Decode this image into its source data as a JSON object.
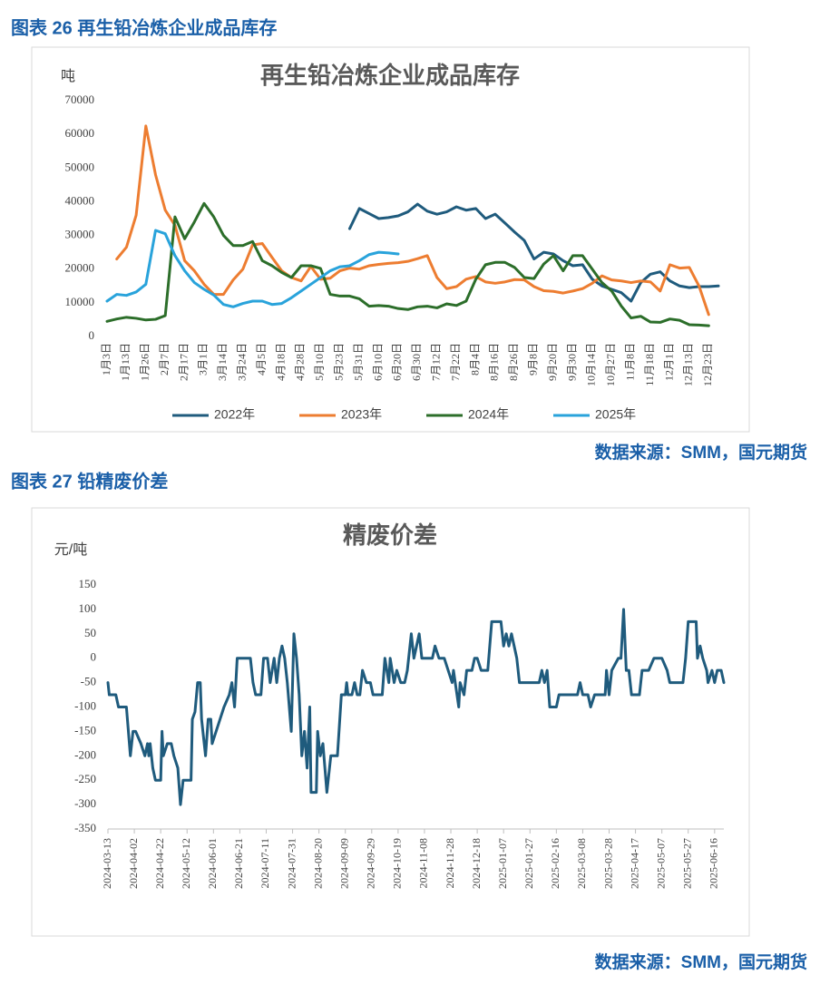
{
  "captions": [
    "图表 26 再生铅冶炼企业成品库存",
    "图表 27 铅精废价差"
  ],
  "sources": [
    "数据来源：SMM，国元期货",
    "数据来源：SMM，国元期货"
  ],
  "chart_data": [
    {
      "type": "line",
      "title": "再生铅冶炼企业成品库存",
      "y_label": "吨",
      "categories": [
        "1月3日",
        null,
        "1月13日",
        null,
        "1月26日",
        null,
        "2月7日",
        null,
        "2月17日",
        null,
        "3月1日",
        null,
        "3月14日",
        null,
        "3月24日",
        null,
        "4月5日",
        null,
        "4月18日",
        null,
        "4月28日",
        null,
        "5月10日",
        null,
        "5月23日",
        null,
        "5月31日",
        null,
        "6月10日",
        null,
        "6月20日",
        null,
        "6月30日",
        null,
        "7月12日",
        null,
        "7月22日",
        null,
        "8月4日",
        null,
        "8月16日",
        null,
        "8月26日",
        null,
        "9月8日",
        null,
        "9月20日",
        null,
        "9月30日",
        null,
        "10月14日",
        null,
        "10月27日",
        null,
        "11月8日",
        null,
        "11月18日",
        null,
        "12月1日",
        null,
        "12月13日",
        null,
        "12月23日",
        null
      ],
      "ylim": [
        0,
        70000
      ],
      "yticks": [
        0,
        10000,
        20000,
        30000,
        40000,
        50000,
        60000,
        70000
      ],
      "grid": false,
      "legend": "bottom",
      "series": [
        {
          "name": "2022年",
          "color": "#1f5b7d",
          "values": [
            null,
            null,
            null,
            null,
            null,
            null,
            null,
            null,
            null,
            null,
            null,
            null,
            null,
            null,
            null,
            null,
            null,
            null,
            null,
            null,
            null,
            null,
            null,
            null,
            null,
            32000,
            38000,
            36500,
            35000,
            35300,
            35800,
            37000,
            39300,
            37200,
            36300,
            37000,
            38500,
            37500,
            38000,
            35000,
            36300,
            33700,
            31000,
            28500,
            23000,
            25000,
            24500,
            22500,
            21000,
            21300,
            17000,
            15000,
            14000,
            13000,
            10500,
            16000,
            18500,
            19200,
            16500,
            15000,
            14500,
            14800,
            14800,
            15000
          ]
        },
        {
          "name": "2023年",
          "color": "#ed7d31",
          "values": [
            null,
            23000,
            26500,
            36000,
            62500,
            48000,
            37500,
            33000,
            22500,
            19500,
            15500,
            12500,
            12500,
            16800,
            20000,
            27200,
            27600,
            23500,
            19500,
            17500,
            16500,
            20800,
            17000,
            17300,
            19500,
            20300,
            20000,
            21000,
            21400,
            21700,
            21900,
            22300,
            23100,
            24000,
            17500,
            14200,
            14800,
            17000,
            17800,
            16200,
            15800,
            16200,
            16900,
            16800,
            14800,
            13600,
            13400,
            12900,
            13500,
            14200,
            15800,
            18000,
            16800,
            16500,
            16000,
            16500,
            16200,
            13500,
            21300,
            20300,
            20500,
            15000,
            6500,
            null
          ]
        },
        {
          "name": "2024年",
          "color": "#2c6e2a",
          "values": [
            4500,
            5200,
            5700,
            5400,
            4900,
            5100,
            6200,
            35500,
            29000,
            34000,
            39500,
            35500,
            30000,
            27000,
            27000,
            28200,
            22500,
            21000,
            19000,
            17500,
            21000,
            21000,
            20200,
            12500,
            12000,
            12000,
            11200,
            9000,
            9200,
            9000,
            8300,
            8000,
            8800,
            9000,
            8500,
            9700,
            9200,
            10500,
            17000,
            21300,
            22000,
            22000,
            20500,
            17500,
            17200,
            21500,
            24000,
            19500,
            24000,
            24000,
            20000,
            16000,
            13500,
            9000,
            5500,
            6000,
            4300,
            4200,
            5200,
            4800,
            3500,
            3400,
            3200,
            null
          ]
        },
        {
          "name": "2025年",
          "color": "#29a3db",
          "values": [
            10500,
            12500,
            12200,
            13200,
            15500,
            31500,
            30500,
            24000,
            19500,
            16000,
            14000,
            12300,
            9500,
            8800,
            9800,
            10500,
            10500,
            9500,
            9800,
            11500,
            13500,
            15500,
            17500,
            19500,
            20700,
            21000,
            22500,
            24300,
            25000,
            24800,
            24500,
            null,
            null,
            null,
            null,
            null,
            null,
            null,
            null,
            null,
            null,
            null,
            null,
            null,
            null,
            null,
            null,
            null,
            null,
            null,
            null,
            null,
            null,
            null,
            null,
            null,
            null,
            null,
            null,
            null,
            null,
            null,
            null,
            null
          ]
        }
      ]
    },
    {
      "type": "line",
      "title": "精废价差",
      "y_label": "元/吨",
      "color": "#1f5b7d",
      "xlim": [
        "2024-03-13",
        "2025-06-23"
      ],
      "xticks": [
        "2024-03-13",
        "2024-04-02",
        "2024-04-22",
        "2024-05-12",
        "2024-06-01",
        "2024-06-21",
        "2024-07-11",
        "2024-07-31",
        "2024-08-20",
        "2024-09-09",
        "2024-09-29",
        "2024-10-19",
        "2024-11-08",
        "2024-11-28",
        "2024-12-18",
        "2025-01-07",
        "2025-01-27",
        "2025-02-16",
        "2025-03-08",
        "2025-03-28",
        "2025-04-17",
        "2025-05-07",
        "2025-05-27",
        "2025-06-16"
      ],
      "ylim": [
        -350,
        150
      ],
      "yticks": [
        -350,
        -300,
        -250,
        -200,
        -150,
        -100,
        -50,
        0,
        50,
        100,
        150
      ],
      "grid": false,
      "x": [
        "2024-03-13",
        "2024-03-14",
        "2024-03-19",
        "2024-03-21",
        "2024-03-27",
        "2024-03-30",
        "2024-04-01",
        "2024-04-03",
        "2024-04-07",
        "2024-04-10",
        "2024-04-12",
        "2024-04-13",
        "2024-04-14",
        "2024-04-16",
        "2024-04-18",
        "2024-04-22",
        "2024-04-23",
        "2024-04-24",
        "2024-04-27",
        "2024-04-30",
        "2024-05-02",
        "2024-05-05",
        "2024-05-07",
        "2024-05-09",
        "2024-05-15",
        "2024-05-16",
        "2024-05-18",
        "2024-05-20",
        "2024-05-22",
        "2024-05-23",
        "2024-05-26",
        "2024-05-28",
        "2024-05-30",
        "2024-05-31",
        "2024-06-03",
        "2024-06-06",
        "2024-06-09",
        "2024-06-13",
        "2024-06-15",
        "2024-06-17",
        "2024-06-19",
        "2024-06-29",
        "2024-07-01",
        "2024-07-03",
        "2024-07-07",
        "2024-07-09",
        "2024-07-12",
        "2024-07-14",
        "2024-07-17",
        "2024-07-19",
        "2024-07-21",
        "2024-07-23",
        "2024-07-25",
        "2024-07-27",
        "2024-07-30",
        "2024-08-01",
        "2024-08-03",
        "2024-08-05",
        "2024-08-07",
        "2024-08-09",
        "2024-08-11",
        "2024-08-13",
        "2024-08-14",
        "2024-08-18",
        "2024-08-19",
        "2024-08-21",
        "2024-08-23",
        "2024-08-26",
        "2024-08-29",
        "2024-09-03",
        "2024-09-06",
        "2024-09-09",
        "2024-09-10",
        "2024-09-11",
        "2024-09-14",
        "2024-09-16",
        "2024-09-18",
        "2024-09-20",
        "2024-09-22",
        "2024-09-25",
        "2024-09-28",
        "2024-09-30",
        "2024-10-04",
        "2024-10-07",
        "2024-10-09",
        "2024-10-12",
        "2024-10-13",
        "2024-10-16",
        "2024-10-18",
        "2024-10-21",
        "2024-10-24",
        "2024-10-26",
        "2024-10-29",
        "2024-10-31",
        "2024-11-02",
        "2024-11-04",
        "2024-11-06",
        "2024-11-14",
        "2024-11-16",
        "2024-11-19",
        "2024-11-23",
        "2024-11-26",
        "2024-11-29",
        "2024-11-30",
        "2024-12-04",
        "2024-12-05",
        "2024-12-08",
        "2024-12-10",
        "2024-12-14",
        "2024-12-16",
        "2024-12-18",
        "2024-12-21",
        "2024-12-24",
        "2024-12-26",
        "2024-12-29",
        "2025-01-05",
        "2025-01-07",
        "2025-01-09",
        "2025-01-11",
        "2025-01-13",
        "2025-01-15",
        "2025-01-17",
        "2025-01-19",
        "2025-01-23",
        "2025-02-03",
        "2025-02-05",
        "2025-02-07",
        "2025-02-09",
        "2025-02-11",
        "2025-02-16",
        "2025-02-18",
        "2025-02-22",
        "2025-03-04",
        "2025-03-06",
        "2025-03-08",
        "2025-03-12",
        "2025-03-14",
        "2025-03-17",
        "2025-03-25",
        "2025-03-26",
        "2025-03-28",
        "2025-03-30",
        "2025-04-04",
        "2025-04-06",
        "2025-04-08",
        "2025-04-10",
        "2025-04-12",
        "2025-04-14",
        "2025-04-20",
        "2025-04-22",
        "2025-04-27",
        "2025-05-01",
        "2025-05-07",
        "2025-05-11",
        "2025-05-13",
        "2025-05-23",
        "2025-05-25",
        "2025-05-27",
        "2025-06-02",
        "2025-06-03",
        "2025-06-05",
        "2025-06-07",
        "2025-06-10",
        "2025-06-11",
        "2025-06-14",
        "2025-06-16",
        "2025-06-18",
        "2025-06-21",
        "2025-06-23"
      ],
      "values": [
        -50,
        -75,
        -75,
        -100,
        -100,
        -200,
        -150,
        -150,
        -175,
        -200,
        -175,
        -200,
        -175,
        -225,
        -250,
        -250,
        -150,
        -200,
        -175,
        -175,
        -200,
        -225,
        -300,
        -250,
        -250,
        -125,
        -110,
        -50,
        -50,
        -125,
        -200,
        -125,
        -125,
        -175,
        -150,
        -125,
        -100,
        -75,
        -50,
        -100,
        0,
        0,
        -50,
        -75,
        -75,
        0,
        0,
        -50,
        0,
        -50,
        0,
        25,
        0,
        -50,
        -150,
        50,
        0,
        -75,
        -200,
        -150,
        -225,
        -100,
        -275,
        -275,
        -150,
        -200,
        -175,
        -275,
        -200,
        -200,
        -75,
        -75,
        -50,
        -75,
        -75,
        -50,
        -75,
        -75,
        -25,
        -50,
        -50,
        -75,
        -75,
        -75,
        0,
        -50,
        0,
        -50,
        -25,
        -50,
        -50,
        -25,
        50,
        0,
        25,
        50,
        0,
        0,
        25,
        0,
        0,
        -25,
        -50,
        -25,
        -100,
        -50,
        -75,
        -25,
        -25,
        0,
        0,
        -25,
        -25,
        -25,
        75,
        75,
        25,
        50,
        25,
        50,
        25,
        0,
        -50,
        -50,
        -50,
        -25,
        -50,
        -25,
        -100,
        -100,
        -75,
        -75,
        -75,
        -50,
        -75,
        -75,
        -100,
        -75,
        -75,
        -25,
        -75,
        -25,
        0,
        0,
        100,
        -25,
        -25,
        -75,
        -75,
        -25,
        -25,
        0,
        0,
        -25,
        -50,
        -50,
        0,
        75,
        75,
        0,
        25,
        0,
        -25,
        -50,
        -25,
        -50,
        -25,
        -25,
        -50
      ]
    }
  ]
}
